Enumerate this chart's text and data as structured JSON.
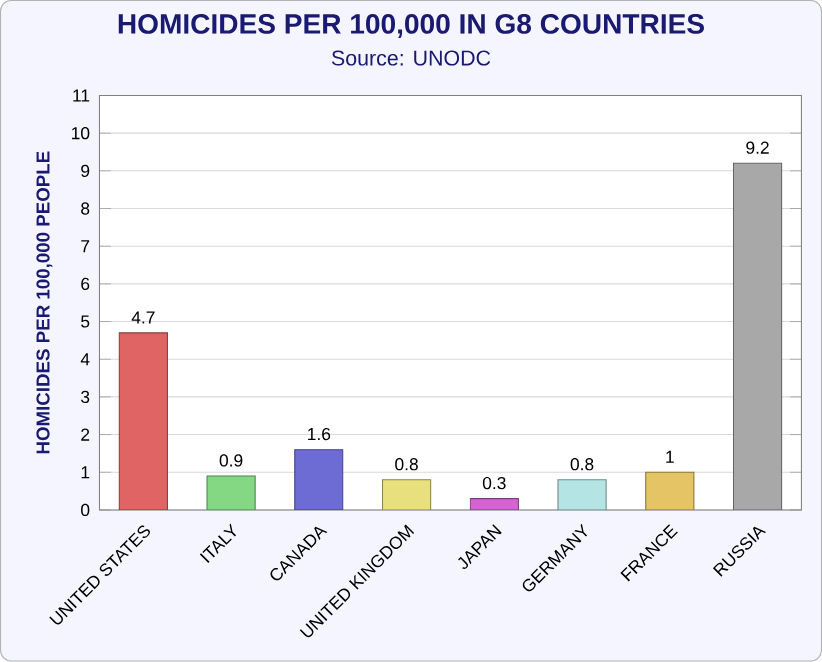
{
  "chart_data": {
    "type": "bar",
    "title": "HOMICIDES PER 100,000 IN G8 COUNTRIES",
    "subtitle": "Source: UNODC",
    "ylabel": "HOMICIDES PER 100,000 PEOPLE",
    "categories": [
      "UNITED STATES",
      "ITALY",
      "CANADA",
      "UNITED KINGDOM",
      "JAPAN",
      "GERMANY",
      "FRANCE",
      "RUSSIA"
    ],
    "values": [
      4.7,
      0.9,
      1.6,
      0.8,
      0.3,
      0.8,
      1,
      9.2
    ],
    "colors": [
      "#e06464",
      "#84d884",
      "#6c6cd4",
      "#e8e07c",
      "#d464d4",
      "#b4e4e4",
      "#e4c464",
      "#a8a8a8"
    ],
    "ylim": [
      0,
      11
    ],
    "yticks": [
      0,
      1,
      2,
      3,
      4,
      5,
      6,
      7,
      8,
      9,
      10,
      11
    ],
    "grid": "y",
    "data_labels": true
  }
}
